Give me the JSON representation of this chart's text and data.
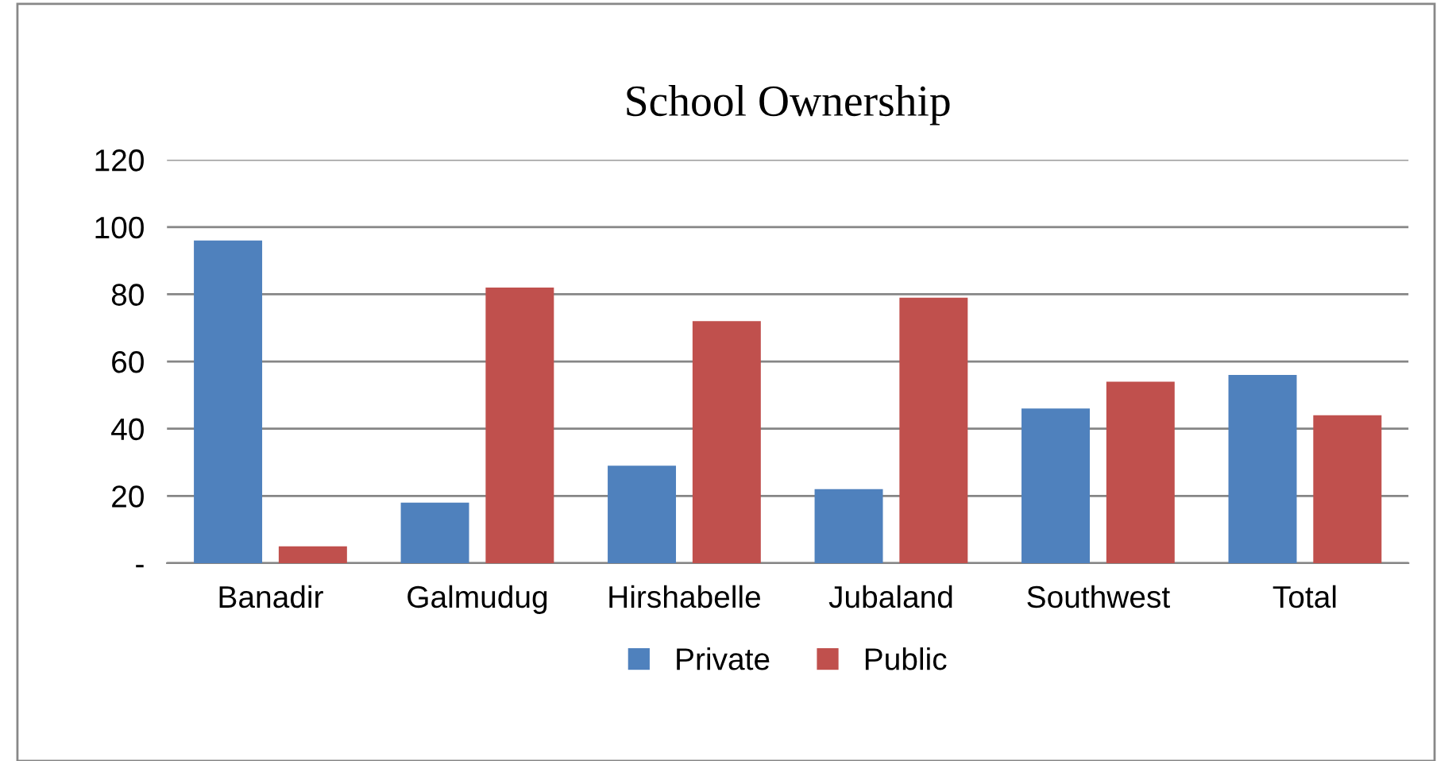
{
  "chart_data": {
    "type": "bar",
    "title": "School Ownership",
    "categories": [
      "Banadir",
      "Galmudug",
      "Hirshabelle",
      "Jubaland",
      "Southwest",
      "Total"
    ],
    "series": [
      {
        "name": "Private",
        "color": "#4f81bd",
        "values": [
          96,
          18,
          29,
          22,
          46,
          56
        ]
      },
      {
        "name": "Public",
        "color": "#c0504d",
        "values": [
          5,
          82,
          72,
          79,
          54,
          44
        ]
      }
    ],
    "ylim": [
      0,
      120
    ],
    "yticks": [
      {
        "value": 0,
        "label": "-"
      },
      20,
      40,
      60,
      80,
      100,
      120
    ],
    "grid": "y",
    "legend": "bottom"
  }
}
